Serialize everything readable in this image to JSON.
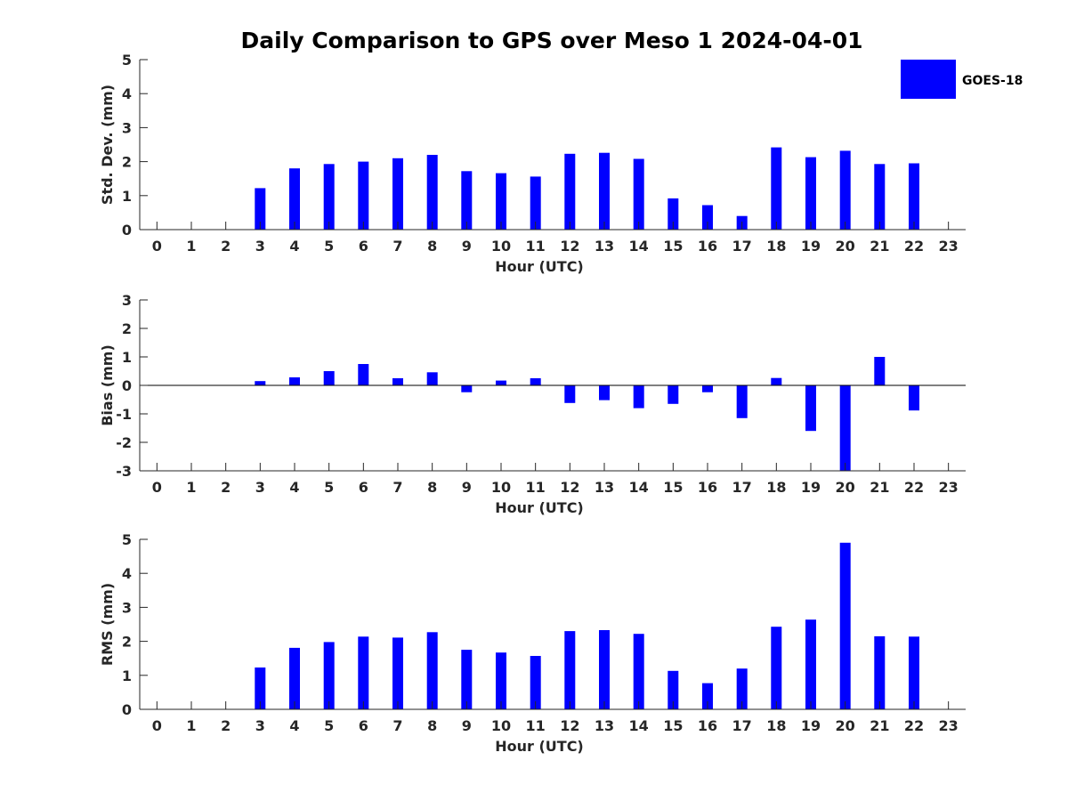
{
  "chart_data": {
    "title": "Daily Comparison to GPS over Meso 1 2024-04-01",
    "legend": {
      "entries": [
        "GOES-18"
      ],
      "placement": "top-right"
    },
    "series_color": "#0000ff",
    "panels": [
      {
        "type": "bar",
        "xlabel": "Hour (UTC)",
        "ylabel": "Std. Dev. (mm)",
        "ylim": [
          0,
          5
        ],
        "yticks": [
          0,
          1,
          2,
          3,
          4,
          5
        ],
        "categories": [
          "0",
          "1",
          "2",
          "3",
          "4",
          "5",
          "6",
          "7",
          "8",
          "9",
          "10",
          "11",
          "12",
          "13",
          "14",
          "15",
          "16",
          "17",
          "18",
          "19",
          "20",
          "21",
          "22",
          "23"
        ],
        "series": [
          {
            "values": [
              null,
              null,
              null,
              1.22,
              1.8,
              1.93,
              2.0,
              2.1,
              2.2,
              1.72,
              1.66,
              1.56,
              2.23,
              2.26,
              2.08,
              0.92,
              0.72,
              0.4,
              2.42,
              2.13,
              2.32,
              1.93,
              1.95,
              null
            ]
          }
        ]
      },
      {
        "type": "bar",
        "xlabel": "Hour (UTC)",
        "ylabel": "Bias (mm)",
        "ylim": [
          -3,
          3
        ],
        "yticks": [
          -3,
          -2,
          -1,
          0,
          1,
          2,
          3
        ],
        "categories": [
          "0",
          "1",
          "2",
          "3",
          "4",
          "5",
          "6",
          "7",
          "8",
          "9",
          "10",
          "11",
          "12",
          "13",
          "14",
          "15",
          "16",
          "17",
          "18",
          "19",
          "20",
          "21",
          "22",
          "23"
        ],
        "series": [
          {
            "values": [
              null,
              null,
              null,
              0.15,
              0.28,
              0.5,
              0.75,
              0.25,
              0.46,
              -0.24,
              0.17,
              0.25,
              -0.62,
              -0.52,
              -0.8,
              -0.65,
              -0.24,
              -1.15,
              0.26,
              -1.6,
              -3.0,
              1.0,
              -0.88,
              null
            ]
          }
        ]
      },
      {
        "type": "bar",
        "xlabel": "Hour (UTC)",
        "ylabel": "RMS (mm)",
        "ylim": [
          0,
          5
        ],
        "yticks": [
          0,
          1,
          2,
          3,
          4,
          5
        ],
        "categories": [
          "0",
          "1",
          "2",
          "3",
          "4",
          "5",
          "6",
          "7",
          "8",
          "9",
          "10",
          "11",
          "12",
          "13",
          "14",
          "15",
          "16",
          "17",
          "18",
          "19",
          "20",
          "21",
          "22",
          "23"
        ],
        "series": [
          {
            "values": [
              null,
              null,
              null,
              1.23,
              1.81,
              1.98,
              2.14,
              2.11,
              2.27,
              1.75,
              1.67,
              1.57,
              2.3,
              2.33,
              2.22,
              1.13,
              0.77,
              1.2,
              2.43,
              2.64,
              4.9,
              2.15,
              2.14,
              null
            ]
          }
        ]
      }
    ]
  }
}
